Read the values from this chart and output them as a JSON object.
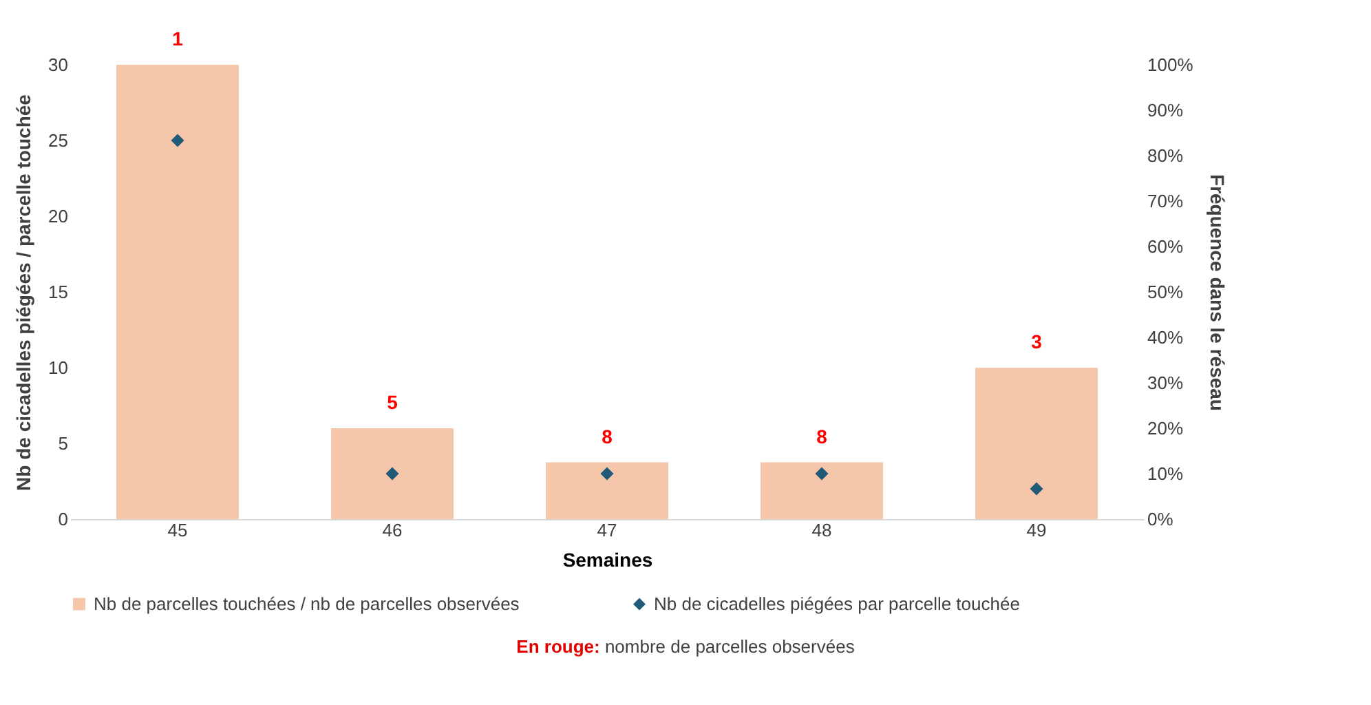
{
  "chart_data": {
    "type": "bar",
    "xlabel": "Semaines",
    "ylabel": "Nb de cicadelles piégées / parcelle touchée",
    "y2label": "Fréquence dans le réseau",
    "categories": [
      "45",
      "46",
      "47",
      "48",
      "49"
    ],
    "series": [
      {
        "name": "Nb de parcelles touchées / nb de parcelles observées",
        "axis": "y2",
        "color": "#f5c6aa",
        "values": [
          100,
          20,
          12.5,
          12.5,
          33.3
        ]
      },
      {
        "name": "Nb de cicadelles piégées par parcelle touchée",
        "type": "scatter",
        "color": "#1f5a78",
        "values": [
          25,
          3,
          3,
          3,
          2
        ]
      }
    ],
    "marker": "diamond",
    "ylim": [
      0,
      30
    ],
    "yticks": [
      0,
      5,
      10,
      15,
      20,
      25,
      30
    ],
    "y2lim": [
      0,
      100
    ],
    "y2ticks": [
      {
        "value": 0,
        "label": "0%"
      },
      {
        "value": 10,
        "label": "10%"
      },
      {
        "value": 20,
        "label": "20%"
      },
      {
        "value": 30,
        "label": "30%"
      },
      {
        "value": 40,
        "label": "40%"
      },
      {
        "value": 50,
        "label": "50%"
      },
      {
        "value": 60,
        "label": "60%"
      },
      {
        "value": 70,
        "label": "70%"
      },
      {
        "value": 80,
        "label": "80%"
      },
      {
        "value": 90,
        "label": "90%"
      },
      {
        "value": 100,
        "label": "100%"
      }
    ],
    "grid": false,
    "legend": "bottom",
    "annotations": [
      "1",
      "5",
      "8",
      "8",
      "3",
      "En rouge: nombre de parcelles observées"
    ]
  }
}
